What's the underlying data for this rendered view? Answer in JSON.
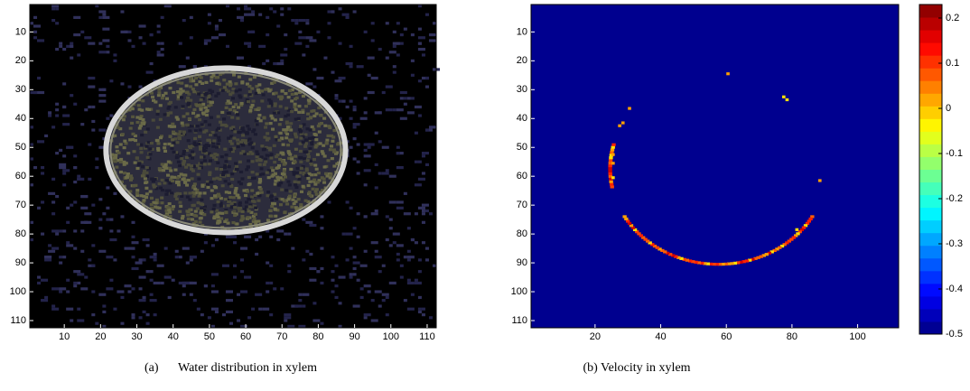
{
  "chart_data": [
    {
      "type": "image",
      "label": "(a)",
      "caption": "Water distribution in xylem",
      "xlim": [
        0.5,
        112.5
      ],
      "ylim": [
        0.5,
        112.5
      ],
      "xticks": [
        10,
        20,
        30,
        40,
        50,
        60,
        70,
        80,
        90,
        100,
        110
      ],
      "yticks": [
        10,
        20,
        30,
        40,
        50,
        60,
        70,
        80,
        90,
        100,
        110
      ]
    },
    {
      "type": "image",
      "caption": "(b) Velocity in xylem",
      "xlim": [
        0.5,
        112.5
      ],
      "ylim": [
        0.5,
        112.5
      ],
      "xticks": [
        20,
        40,
        60,
        80,
        100
      ],
      "yticks": [
        10,
        20,
        30,
        40,
        50,
        60,
        70,
        80,
        90,
        100,
        110
      ],
      "colorbar": {
        "clim": [
          -0.5,
          0.23
        ],
        "ticks": [
          0.2,
          0.1,
          0,
          -0.1,
          -0.2,
          -0.3,
          -0.4,
          -0.5
        ],
        "colormap": "jet"
      }
    }
  ]
}
